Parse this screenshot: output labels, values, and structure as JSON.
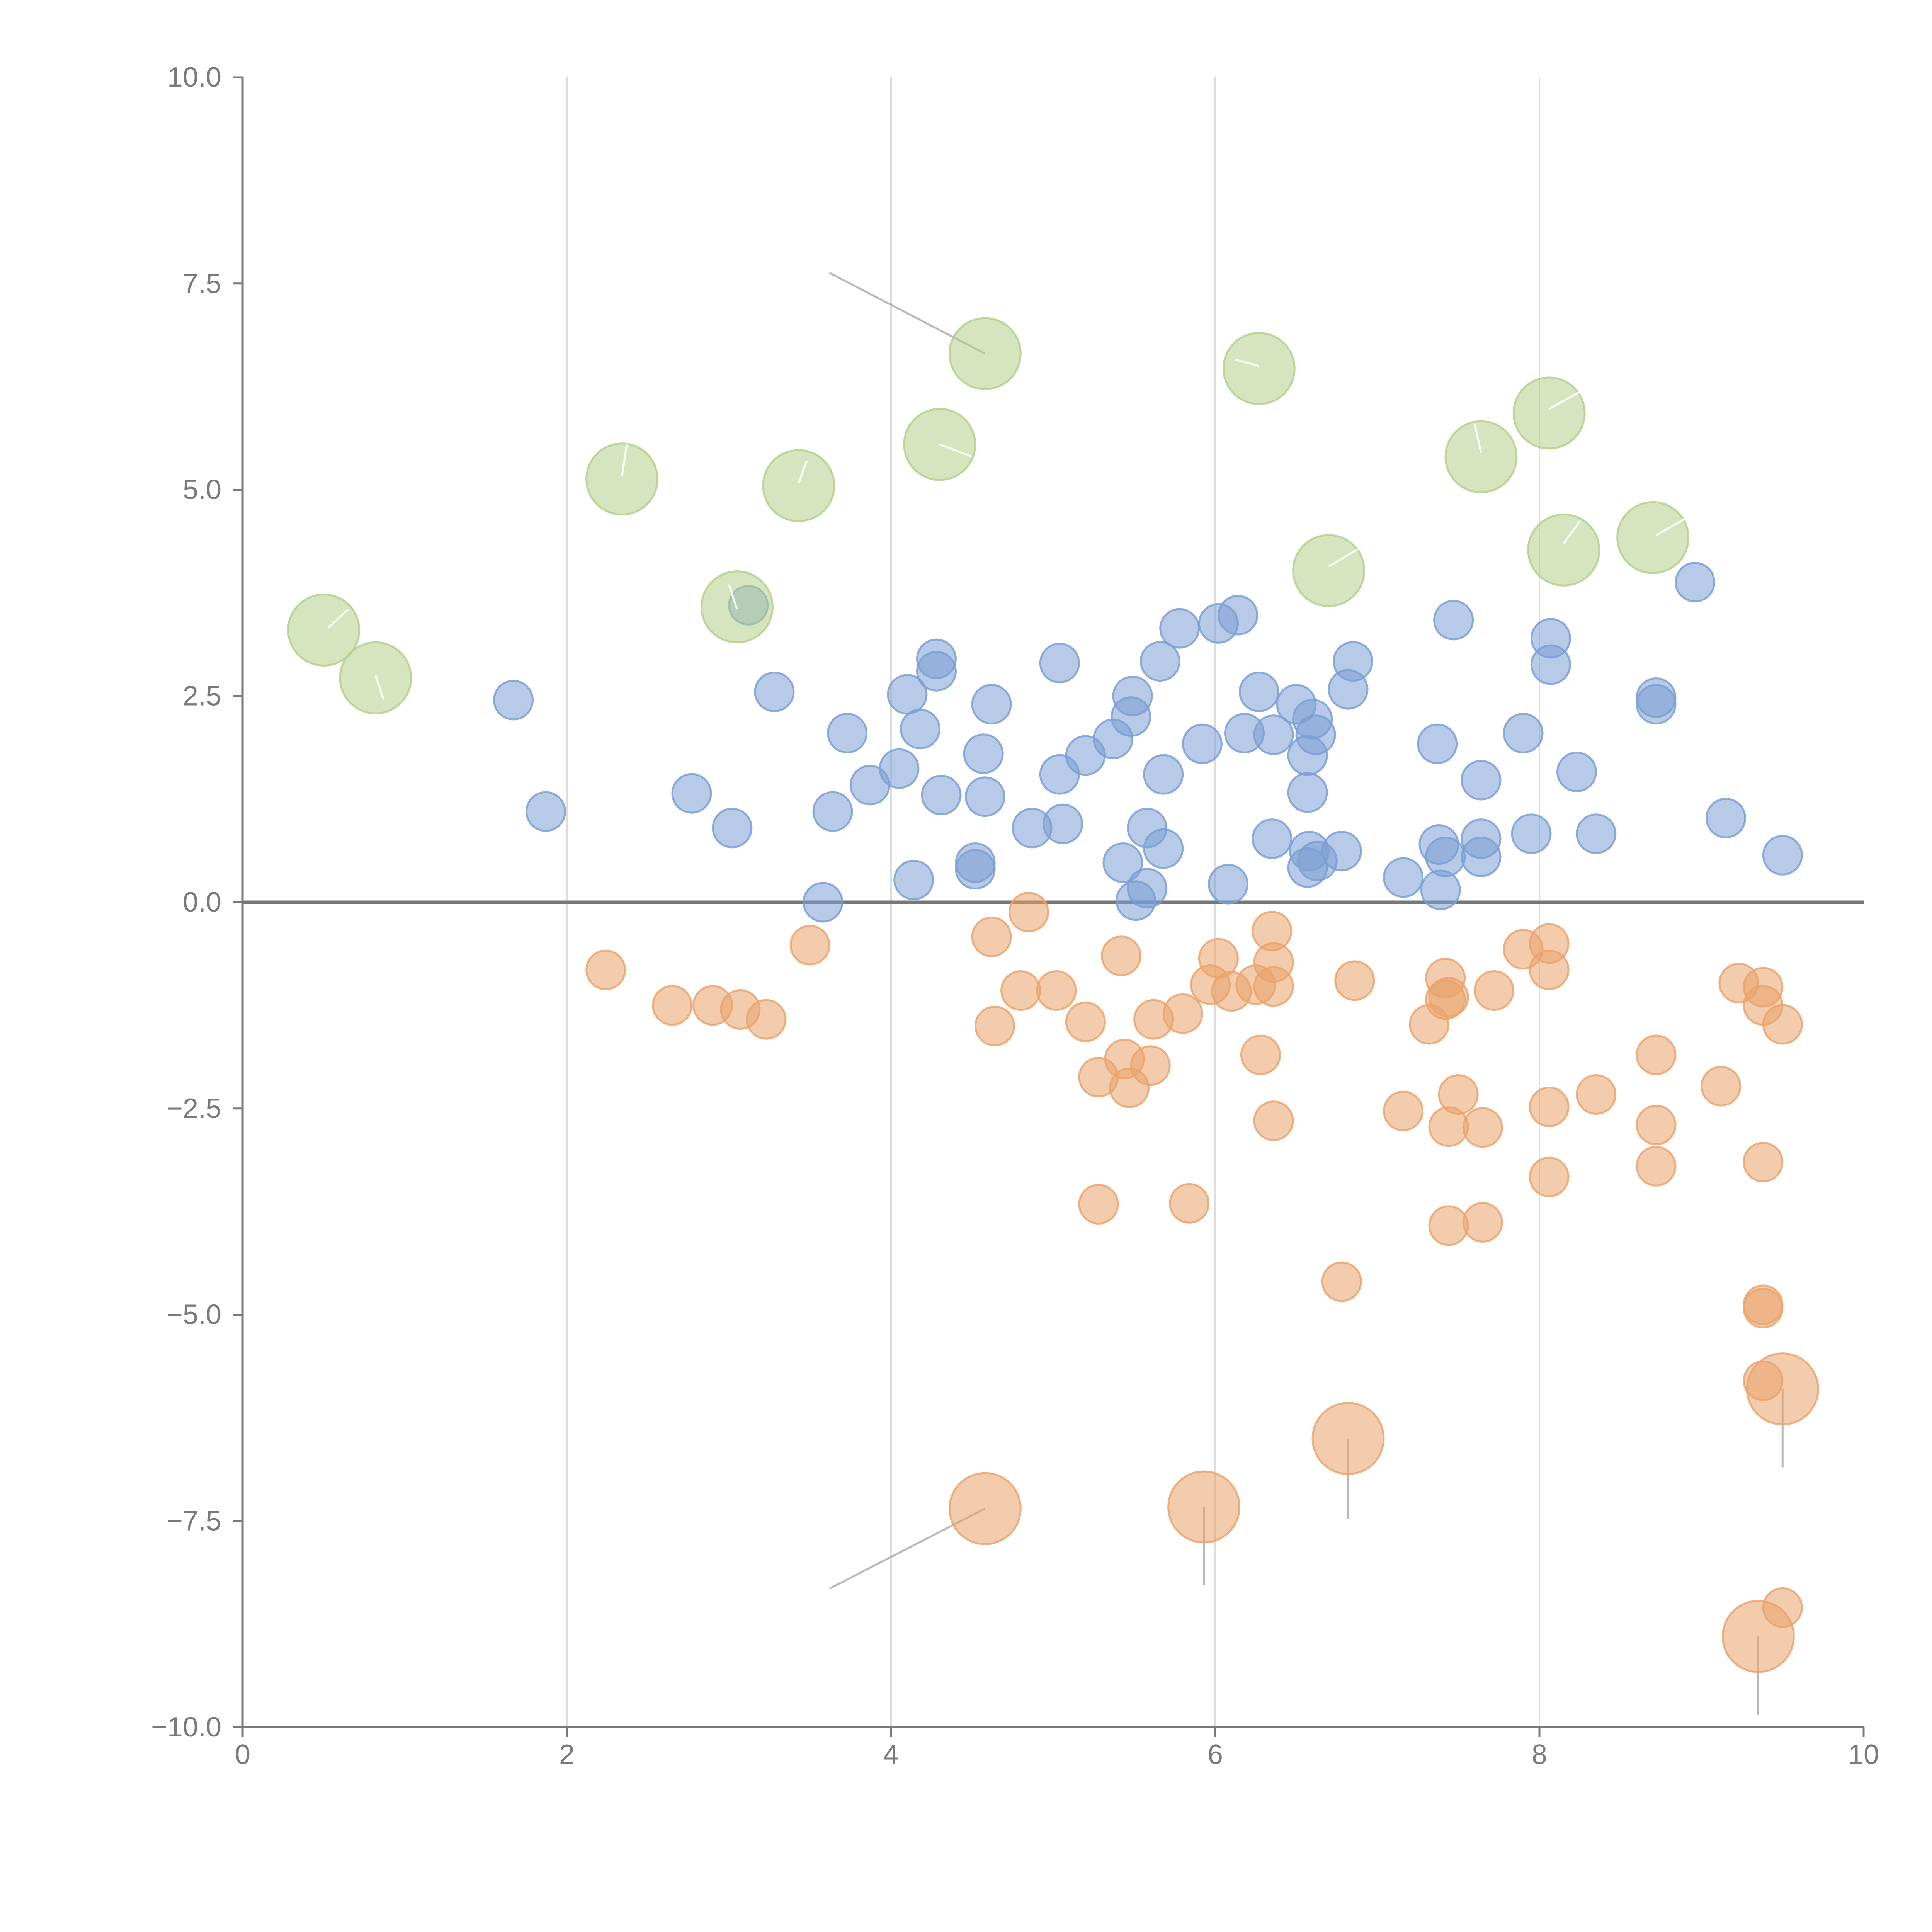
{
  "chart_data": {
    "type": "scatter",
    "title": "",
    "xlabel": "",
    "ylabel": "",
    "xlim": [
      0,
      10
    ],
    "ylim": [
      -10,
      10
    ],
    "x_ticks": [
      0,
      2,
      4,
      6,
      8,
      10
    ],
    "x_tick_labels": [
      "0",
      "2",
      "4",
      "6",
      "8",
      "10"
    ],
    "y_ticks": [
      10,
      7.5,
      5,
      2.5,
      0,
      -2.5,
      -5,
      -7.5,
      -10
    ],
    "y_tick_labels": [
      "10.0",
      "7.5",
      "5.0",
      "2.5",
      "0.0",
      "−2.5",
      "−5.0",
      "−7.5",
      "−10.0"
    ],
    "vertical_grid_x": [
      2,
      4,
      6,
      8
    ],
    "reference_line_y": 0,
    "colors": {
      "positive": "#7b9fd4",
      "negative": "#eaa36c",
      "highlight": "#b5d08a",
      "axis": "#7a7a7a",
      "grid": "#dcdcdc"
    },
    "series": [
      {
        "name": "positive",
        "color": "#7b9fd4",
        "points": [
          [
            1.67,
            2.45
          ],
          [
            1.87,
            1.1
          ],
          [
            2.77,
            1.32
          ],
          [
            3.02,
            0.9
          ],
          [
            3.12,
            3.6
          ],
          [
            3.28,
            2.55
          ],
          [
            3.58,
            0.0
          ],
          [
            3.64,
            1.1
          ],
          [
            3.73,
            2.05
          ],
          [
            3.87,
            1.42
          ],
          [
            4.05,
            1.62
          ],
          [
            4.1,
            2.52
          ],
          [
            4.14,
            0.27
          ],
          [
            4.18,
            2.1
          ],
          [
            4.28,
            2.95
          ],
          [
            4.28,
            2.8
          ],
          [
            4.31,
            1.3
          ],
          [
            4.52,
            0.48
          ],
          [
            4.52,
            0.4
          ],
          [
            4.57,
            1.8
          ],
          [
            4.58,
            1.28
          ],
          [
            4.62,
            2.4
          ],
          [
            4.87,
            0.9
          ],
          [
            5.04,
            2.9
          ],
          [
            5.04,
            1.55
          ],
          [
            5.06,
            0.95
          ],
          [
            5.2,
            1.78
          ],
          [
            5.37,
            1.98
          ],
          [
            5.43,
            0.48
          ],
          [
            5.49,
            2.5
          ],
          [
            5.48,
            2.25
          ],
          [
            5.51,
            0.02
          ],
          [
            5.58,
            0.17
          ],
          [
            5.58,
            0.9
          ],
          [
            5.66,
            2.92
          ],
          [
            5.68,
            1.55
          ],
          [
            5.68,
            0.65
          ],
          [
            5.78,
            3.32
          ],
          [
            5.92,
            1.92
          ],
          [
            6.02,
            3.38
          ],
          [
            6.14,
            3.48
          ],
          [
            6.18,
            2.05
          ],
          [
            6.08,
            0.22
          ],
          [
            6.27,
            2.55
          ],
          [
            6.35,
            0.77
          ],
          [
            6.36,
            2.03
          ],
          [
            6.5,
            2.4
          ],
          [
            6.57,
            1.33
          ],
          [
            6.57,
            1.78
          ],
          [
            6.58,
            0.62
          ],
          [
            6.6,
            2.22
          ],
          [
            6.62,
            2.03
          ],
          [
            6.57,
            0.42
          ],
          [
            6.63,
            0.5
          ],
          [
            6.78,
            0.62
          ],
          [
            6.82,
            2.58
          ],
          [
            6.85,
            2.92
          ],
          [
            7.16,
            0.3
          ],
          [
            7.37,
            1.92
          ],
          [
            7.38,
            0.7
          ],
          [
            7.42,
            0.55
          ],
          [
            7.39,
            0.15
          ],
          [
            7.47,
            3.42
          ],
          [
            7.64,
            1.48
          ],
          [
            7.64,
            0.77
          ],
          [
            7.64,
            0.55
          ],
          [
            7.9,
            2.05
          ],
          [
            7.95,
            0.83
          ],
          [
            8.07,
            3.2
          ],
          [
            8.07,
            2.88
          ],
          [
            8.23,
            1.58
          ],
          [
            8.35,
            0.83
          ],
          [
            8.72,
            2.48
          ],
          [
            8.72,
            2.4
          ],
          [
            8.96,
            3.88
          ],
          [
            9.15,
            1.02
          ],
          [
            9.5,
            0.57
          ]
        ]
      },
      {
        "name": "negative",
        "color": "#eaa36c",
        "points": [
          [
            2.24,
            -0.82
          ],
          [
            2.65,
            -1.25
          ],
          [
            2.9,
            -1.25
          ],
          [
            3.07,
            -1.3
          ],
          [
            3.23,
            -1.42
          ],
          [
            3.5,
            -0.52
          ],
          [
            4.62,
            -0.42
          ],
          [
            4.64,
            -1.5
          ],
          [
            4.8,
            -1.07
          ],
          [
            4.85,
            -0.12
          ],
          [
            5.02,
            -1.07
          ],
          [
            5.2,
            -1.45
          ],
          [
            5.28,
            -2.12
          ],
          [
            5.28,
            -3.66
          ],
          [
            5.42,
            -0.65
          ],
          [
            5.44,
            -1.9
          ],
          [
            5.47,
            -2.25
          ],
          [
            5.6,
            -1.98
          ],
          [
            5.62,
            -1.42
          ],
          [
            5.8,
            -1.35
          ],
          [
            5.84,
            -3.65
          ],
          [
            5.97,
            -1.0
          ],
          [
            6.02,
            -0.68
          ],
          [
            6.1,
            -1.08
          ],
          [
            6.25,
            -1.0
          ],
          [
            6.28,
            -1.85
          ],
          [
            6.35,
            -0.35
          ],
          [
            6.36,
            -0.73
          ],
          [
            6.36,
            -1.02
          ],
          [
            6.36,
            -2.65
          ],
          [
            6.78,
            -4.6
          ],
          [
            6.86,
            -0.95
          ],
          [
            7.16,
            -2.53
          ],
          [
            7.32,
            -1.48
          ],
          [
            7.42,
            -0.92
          ],
          [
            7.42,
            -1.18
          ],
          [
            7.44,
            -1.15
          ],
          [
            7.44,
            -2.72
          ],
          [
            7.44,
            -3.92
          ],
          [
            7.5,
            -2.33
          ],
          [
            7.65,
            -2.73
          ],
          [
            7.65,
            -3.88
          ],
          [
            7.72,
            -1.07
          ],
          [
            7.9,
            -0.57
          ],
          [
            8.06,
            -0.5
          ],
          [
            8.06,
            -0.82
          ],
          [
            8.06,
            -2.48
          ],
          [
            8.06,
            -3.33
          ],
          [
            8.35,
            -2.33
          ],
          [
            8.72,
            -1.85
          ],
          [
            8.72,
            -2.7
          ],
          [
            8.72,
            -3.2
          ],
          [
            9.12,
            -2.23
          ],
          [
            9.23,
            -0.98
          ],
          [
            9.38,
            -1.03
          ],
          [
            9.38,
            -1.25
          ],
          [
            9.38,
            -3.15
          ],
          [
            9.38,
            -4.88
          ],
          [
            9.38,
            -4.92
          ],
          [
            9.38,
            -5.8
          ],
          [
            9.5,
            -1.48
          ],
          [
            9.5,
            -8.55
          ]
        ]
      },
      {
        "name": "highlight-positive",
        "color": "#b5d08a",
        "points": [
          [
            0.5,
            3.3
          ],
          [
            0.82,
            2.72
          ],
          [
            2.34,
            5.13
          ],
          [
            3.05,
            3.58
          ],
          [
            3.43,
            5.05
          ],
          [
            4.3,
            5.55
          ],
          [
            4.58,
            6.65
          ],
          [
            6.27,
            6.47
          ],
          [
            6.7,
            4.02
          ],
          [
            7.64,
            5.4
          ],
          [
            8.06,
            5.93
          ],
          [
            8.15,
            4.27
          ],
          [
            8.7,
            4.42
          ]
        ]
      },
      {
        "name": "highlight-negative",
        "color": "#eaa36c",
        "points": [
          [
            4.58,
            -7.35
          ],
          [
            5.93,
            -7.33
          ],
          [
            6.82,
            -6.5
          ],
          [
            9.5,
            -5.9
          ],
          [
            9.35,
            -8.9
          ]
        ]
      }
    ],
    "annotations": [
      {
        "from": [
          4.58,
          6.65
        ],
        "to": [
          3.62,
          7.63
        ]
      },
      {
        "from": [
          4.58,
          -7.35
        ],
        "to": [
          3.62,
          -8.32
        ]
      },
      {
        "from": [
          5.93,
          -7.33
        ],
        "to": [
          5.93,
          -8.28
        ]
      },
      {
        "from": [
          6.82,
          -6.5
        ],
        "to": [
          6.82,
          -7.48
        ]
      },
      {
        "from": [
          9.5,
          -5.9
        ],
        "to": [
          9.5,
          -6.85
        ]
      },
      {
        "from": [
          9.35,
          -8.9
        ],
        "to": [
          9.35,
          -9.85
        ]
      }
    ],
    "inner_ticks": [
      {
        "from": [
          0.53,
          3.33
        ],
        "to": [
          0.65,
          3.55
        ]
      },
      {
        "from": [
          0.82,
          2.75
        ],
        "to": [
          0.87,
          2.45
        ]
      },
      {
        "from": [
          2.34,
          5.17
        ],
        "to": [
          2.37,
          5.55
        ]
      },
      {
        "from": [
          3.05,
          3.55
        ],
        "to": [
          3.0,
          3.85
        ]
      },
      {
        "from": [
          3.43,
          5.08
        ],
        "to": [
          3.48,
          5.35
        ]
      },
      {
        "from": [
          4.3,
          5.55
        ],
        "to": [
          4.5,
          5.4
        ]
      },
      {
        "from": [
          6.27,
          6.5
        ],
        "to": [
          6.12,
          6.58
        ]
      },
      {
        "from": [
          6.7,
          4.07
        ],
        "to": [
          6.88,
          4.28
        ]
      },
      {
        "from": [
          7.64,
          5.45
        ],
        "to": [
          7.6,
          5.8
        ]
      },
      {
        "from": [
          8.06,
          5.98
        ],
        "to": [
          8.28,
          6.22
        ]
      },
      {
        "from": [
          8.15,
          4.35
        ],
        "to": [
          8.25,
          4.62
        ]
      },
      {
        "from": [
          8.72,
          4.45
        ],
        "to": [
          8.9,
          4.65
        ]
      }
    ]
  }
}
